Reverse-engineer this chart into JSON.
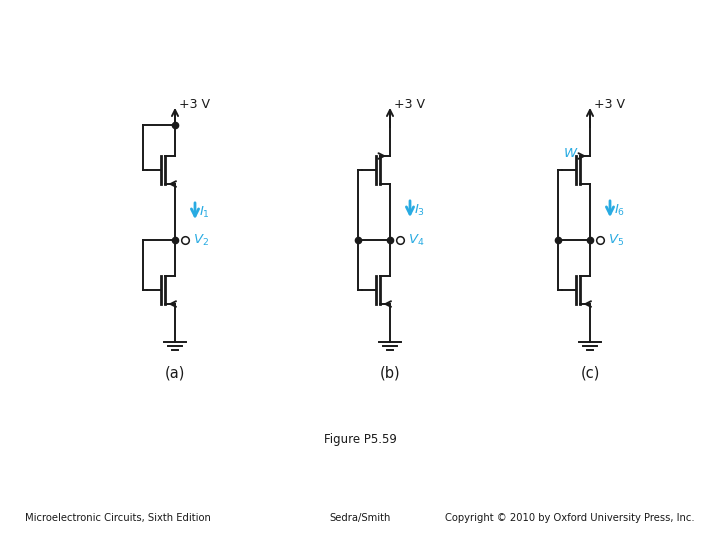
{
  "cyan": "#29ABE2",
  "black": "#1a1a1a",
  "white": "#FFFFFF",
  "vdd_label": "+3 V",
  "label_a": "(a)",
  "label_b": "(b)",
  "label_c": "(c)",
  "fig_label": "Figure P5.59",
  "foot_left": "Microelectronic Circuits, Sixth Edition",
  "foot_center": "Sedra/Smith",
  "foot_right": "Copyright © 2010 by Oxford University Press, Inc.",
  "I1": "$I_1$",
  "I3": "$I_3$",
  "I6": "$I_6$",
  "V2": "$V_2$",
  "V4": "$V_4$",
  "V5": "$V_5$",
  "W_label": "W"
}
